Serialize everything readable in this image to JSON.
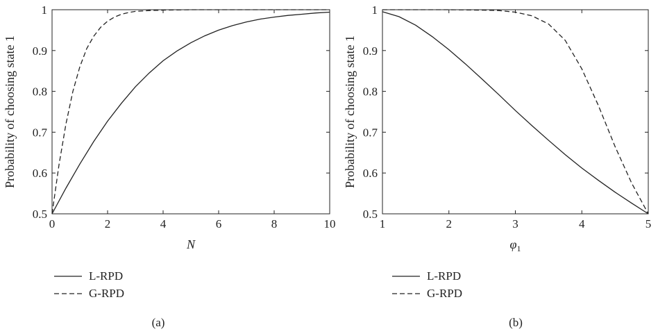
{
  "chart_data": [
    {
      "type": "line",
      "caption": "(a)",
      "xlabel": "N",
      "ylabel": "Probability of choosing state 1",
      "xlim": [
        0,
        10
      ],
      "ylim": [
        0.5,
        1
      ],
      "xticks": [
        "0",
        "2",
        "4",
        "6",
        "8",
        "10"
      ],
      "yticks": [
        "0.5",
        "0.6",
        "0.7",
        "0.8",
        "0.9",
        "1"
      ],
      "grid": false,
      "legend": "below",
      "series": [
        {
          "name": "L-RPD",
          "style": "solid",
          "x": [
            0,
            0.5,
            1,
            1.5,
            2,
            2.5,
            3,
            3.5,
            4,
            4.5,
            5,
            5.5,
            6,
            6.5,
            7,
            7.5,
            8,
            8.5,
            9,
            9.5,
            10
          ],
          "y": [
            0.5,
            0.563,
            0.622,
            0.677,
            0.727,
            0.771,
            0.811,
            0.845,
            0.875,
            0.899,
            0.919,
            0.936,
            0.95,
            0.961,
            0.97,
            0.977,
            0.982,
            0.986,
            0.989,
            0.992,
            0.994
          ]
        },
        {
          "name": "G-RPD",
          "style": "dashed",
          "x": [
            0,
            0.25,
            0.5,
            0.75,
            1,
            1.25,
            1.5,
            1.75,
            2,
            2.25,
            2.5,
            2.75,
            3,
            3.5,
            4,
            5,
            6,
            7,
            8,
            9,
            10
          ],
          "y": [
            0.5,
            0.62,
            0.72,
            0.8,
            0.86,
            0.905,
            0.935,
            0.957,
            0.972,
            0.982,
            0.989,
            0.993,
            0.996,
            0.998,
            0.999,
            1.0,
            1.0,
            1.0,
            1.0,
            1.0,
            1.0
          ]
        }
      ]
    },
    {
      "type": "line",
      "caption": "(b)",
      "xlabel": "φ",
      "xlabel_sub": "1",
      "ylabel": "Probability of choosing state 1",
      "xlim": [
        1,
        5
      ],
      "ylim": [
        0.5,
        1
      ],
      "xticks": [
        "1",
        "2",
        "3",
        "4",
        "5"
      ],
      "yticks": [
        "0.5",
        "0.6",
        "0.7",
        "0.8",
        "0.9",
        "1"
      ],
      "grid": false,
      "legend": "below",
      "series": [
        {
          "name": "L-RPD",
          "style": "solid",
          "x": [
            1,
            1.25,
            1.5,
            1.75,
            2,
            2.25,
            2.5,
            2.75,
            3,
            3.25,
            3.5,
            3.75,
            4,
            4.25,
            4.5,
            4.75,
            5
          ],
          "y": [
            0.995,
            0.983,
            0.962,
            0.934,
            0.902,
            0.867,
            0.83,
            0.792,
            0.753,
            0.716,
            0.68,
            0.645,
            0.612,
            0.582,
            0.553,
            0.526,
            0.5
          ]
        },
        {
          "name": "G-RPD",
          "style": "dashed",
          "x": [
            1,
            1.5,
            2,
            2.5,
            2.75,
            3,
            3.25,
            3.5,
            3.75,
            4,
            4.25,
            4.5,
            4.75,
            5
          ],
          "y": [
            1.0,
            1.0,
            1.0,
            0.999,
            0.998,
            0.994,
            0.985,
            0.965,
            0.925,
            0.855,
            0.765,
            0.665,
            0.575,
            0.5
          ]
        }
      ]
    }
  ]
}
